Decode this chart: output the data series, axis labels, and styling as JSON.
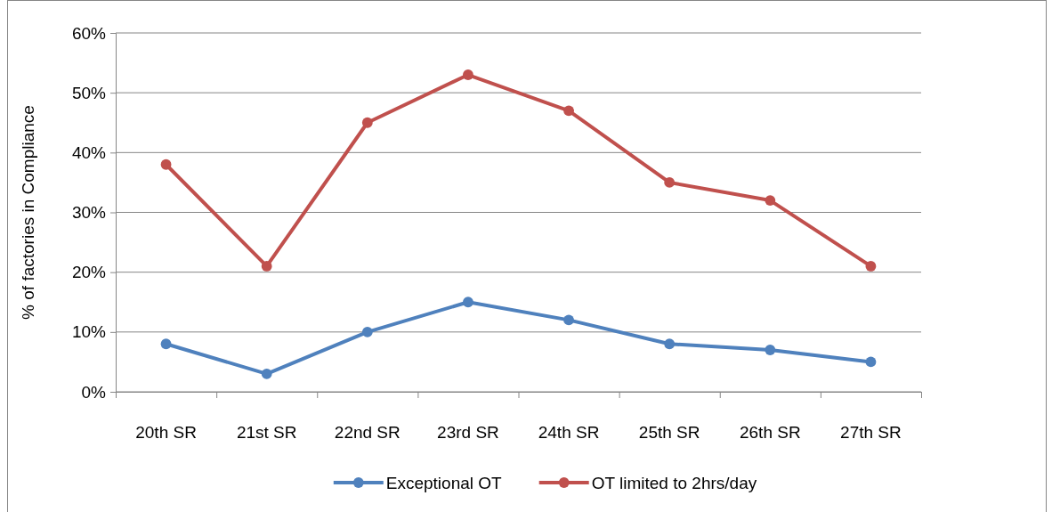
{
  "chart_data": {
    "type": "line",
    "ylabel": "% of factories in Compliance",
    "categories": [
      "20th SR",
      "21st SR",
      "22nd SR",
      "23rd SR",
      "24th SR",
      "25th SR",
      "26th SR",
      "27th SR"
    ],
    "series": [
      {
        "name": "Exceptional OT",
        "color": "#4f81bd",
        "values": [
          8,
          3,
          10,
          15,
          12,
          8,
          7,
          5
        ]
      },
      {
        "name": "OT limited to 2hrs/day",
        "color": "#c0504d",
        "values": [
          38,
          21,
          45,
          53,
          47,
          35,
          32,
          21
        ]
      }
    ],
    "ylim": [
      0,
      60
    ],
    "yticks": [
      {
        "value": 0,
        "label": "0%"
      },
      {
        "value": 10,
        "label": "10%"
      },
      {
        "value": 20,
        "label": "20%"
      },
      {
        "value": 30,
        "label": "30%"
      },
      {
        "value": 40,
        "label": "40%"
      },
      {
        "value": 50,
        "label": "50%"
      },
      {
        "value": 60,
        "label": "60%"
      }
    ],
    "grid": "y",
    "legend": "bottom",
    "marker": "circle",
    "line_style": "solid"
  }
}
